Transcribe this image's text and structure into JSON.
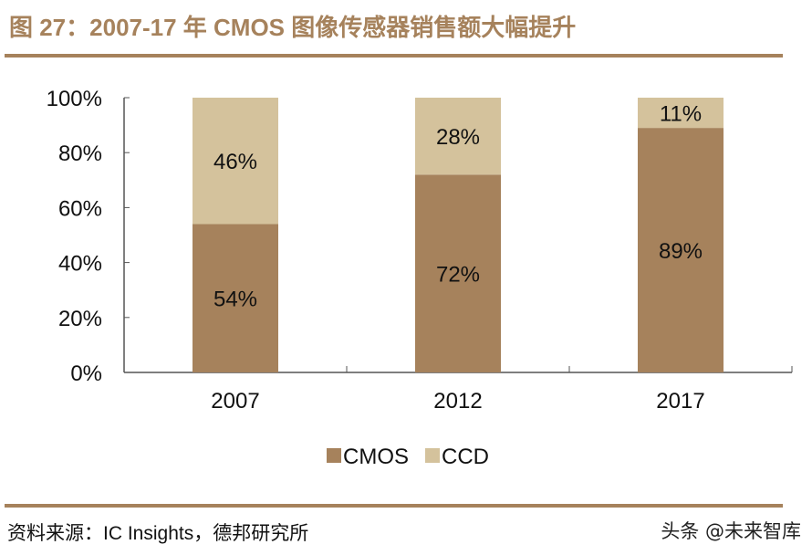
{
  "header": {
    "title": "图 27：2007-17 年 CMOS 图像传感器销售额大幅提升"
  },
  "footer": {
    "source": "资料来源：IC Insights，德邦研究所",
    "watermark": "头条 @未来智库"
  },
  "colors": {
    "accent": "#A6825C",
    "cmos": "#A6825C",
    "ccd": "#D4C29C",
    "axis": "#555555",
    "text": "#111111"
  },
  "chart_data": {
    "type": "bar",
    "stacked": true,
    "title": "2007-17 年 CMOS 图像传感器销售额大幅提升",
    "xlabel": "",
    "ylabel": "",
    "categories": [
      "2007",
      "2012",
      "2017"
    ],
    "series": [
      {
        "name": "CMOS",
        "values": [
          54,
          72,
          89
        ],
        "labels": [
          "54%",
          "72%",
          "89%"
        ],
        "color": "#A6825C"
      },
      {
        "name": "CCD",
        "values": [
          46,
          28,
          11
        ],
        "labels": [
          "46%",
          "28%",
          "11%"
        ],
        "color": "#D4C29C"
      }
    ],
    "ylim": [
      0,
      100
    ],
    "yticks": [
      0,
      20,
      40,
      60,
      80,
      100
    ],
    "ytick_labels": [
      "0%",
      "20%",
      "40%",
      "60%",
      "80%",
      "100%"
    ],
    "grid": false,
    "legend": {
      "position": "bottom",
      "entries": [
        "CMOS",
        "CCD"
      ]
    }
  }
}
